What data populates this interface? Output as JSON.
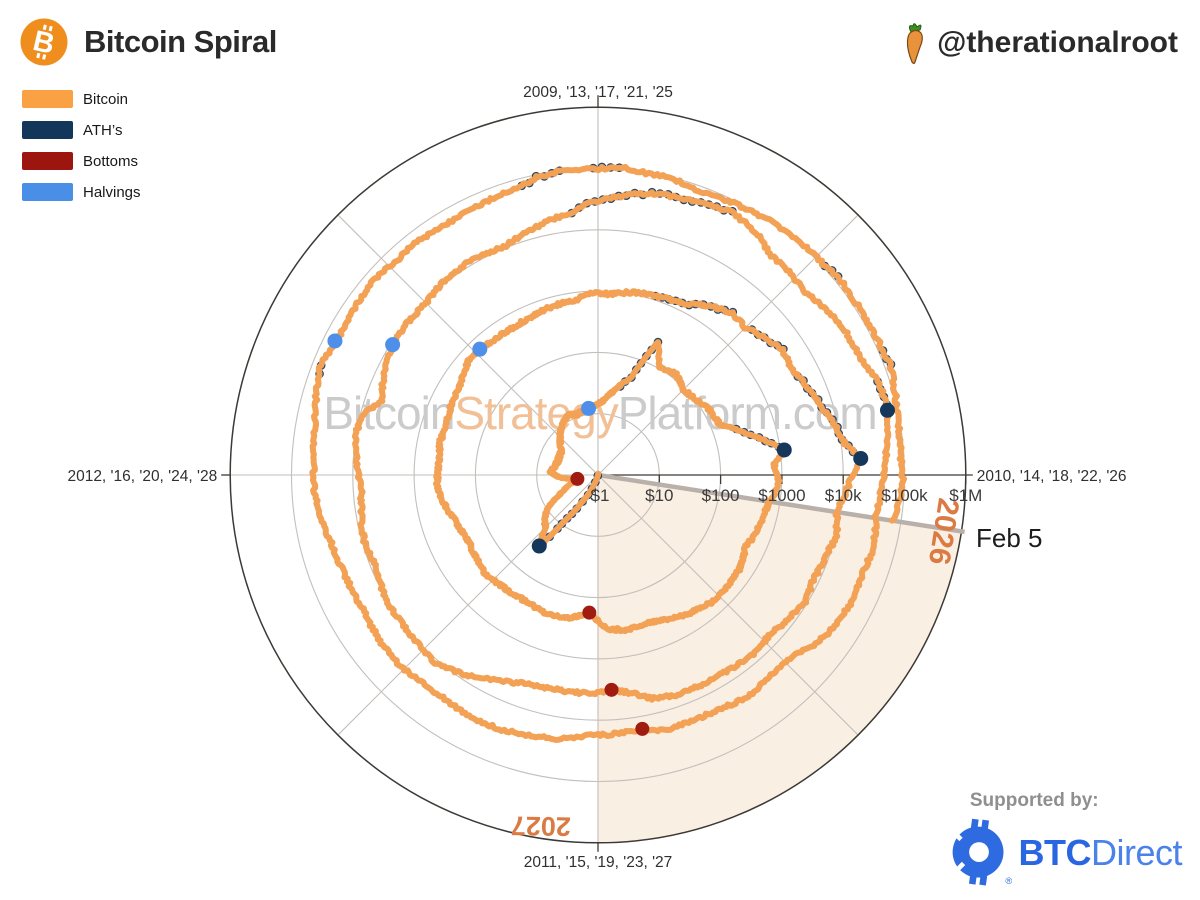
{
  "header": {
    "title": "Bitcoin Spiral",
    "handle": "@therationalroot"
  },
  "legend": [
    {
      "label": "Bitcoin",
      "color": "#F9A143"
    },
    {
      "label": "ATH’s",
      "color": "#12375B"
    },
    {
      "label": "Bottoms",
      "color": "#9C150E"
    },
    {
      "label": "Halvings",
      "color": "#4A8FE7"
    }
  ],
  "axis_labels": {
    "top": "2009, '13, '17, '21, '25",
    "right": "2010, '14, '18, '22, '26",
    "bottom": "2011, '15, '19, '23, '27",
    "left": "2012, '16, '20, '24, '28",
    "price_ticks": [
      "$1",
      "$10",
      "$100",
      "$1000",
      "$10k",
      "$100k",
      "$1M"
    ]
  },
  "annotations": {
    "current_date_label": "Feb 5",
    "wedge_start_year": "2026",
    "wedge_end_year": "2027",
    "watermark_parts": [
      "Bitcoin",
      "Strategy",
      "Platform.com"
    ]
  },
  "footer": {
    "supported_by": "Supported by:",
    "sponsor_bold": "BTC",
    "sponsor_light": "Direct"
  },
  "colors": {
    "bitcoin_line": "#F2A155",
    "ath_dot": "#15375C",
    "bottom_dot": "#A11C10",
    "halving_dot": "#4E8FE9",
    "wedge_fill": "#FAEFE3",
    "grid_light": "#C3BFBB",
    "axis_dark": "#3D3935",
    "gray_line": "#B8B0A9",
    "cycle_label_orange": "#DB7B43",
    "watermark_gray": "#CBCBCB",
    "watermark_orange": "#F2C096",
    "label_dark": "#2F2F2F",
    "header_logo_orange": "#EF8E1C"
  },
  "chart_data": {
    "type": "line",
    "subtype": "polar_log_spiral",
    "title": "Bitcoin Spiral",
    "angle_axis": {
      "years_per_revolution": 4,
      "year_at_top": "2009 + 4k",
      "direction": "clockwise"
    },
    "radial_axis": {
      "scale": "log10",
      "unit": "USD",
      "center_value": 1,
      "outer_value": 1000000
    },
    "price_series": [
      [
        2011.1,
        1.0
      ],
      [
        2011.18,
        0.95
      ],
      [
        2011.26,
        1.7
      ],
      [
        2011.34,
        3.2
      ],
      [
        2011.4,
        8.5
      ],
      [
        2011.44,
        31.9
      ],
      [
        2011.5,
        16
      ],
      [
        2011.56,
        13.5
      ],
      [
        2011.63,
        9.5
      ],
      [
        2011.7,
        5.0
      ],
      [
        2011.79,
        3.0
      ],
      [
        2011.88,
        2.2
      ],
      [
        2011.96,
        4.2
      ],
      [
        2012.04,
        6.0
      ],
      [
        2012.12,
        5.2
      ],
      [
        2012.21,
        4.9
      ],
      [
        2012.29,
        5.0
      ],
      [
        2012.37,
        5.2
      ],
      [
        2012.46,
        6.6
      ],
      [
        2012.54,
        8.5
      ],
      [
        2012.62,
        10.5
      ],
      [
        2012.71,
        12.3
      ],
      [
        2012.79,
        11.0
      ],
      [
        2012.88,
        12.5
      ],
      [
        2012.96,
        13.3
      ],
      [
        2013.04,
        16
      ],
      [
        2013.12,
        25
      ],
      [
        2013.21,
        48
      ],
      [
        2013.27,
        230
      ],
      [
        2013.33,
        105
      ],
      [
        2013.42,
        120
      ],
      [
        2013.5,
        93
      ],
      [
        2013.58,
        102
      ],
      [
        2013.67,
        130
      ],
      [
        2013.75,
        140
      ],
      [
        2013.83,
        340
      ],
      [
        2013.915,
        1163
      ],
      [
        2013.96,
        760
      ],
      [
        2014.02,
        900
      ],
      [
        2014.12,
        640
      ],
      [
        2014.21,
        570
      ],
      [
        2014.29,
        470
      ],
      [
        2014.37,
        590
      ],
      [
        2014.46,
        620
      ],
      [
        2014.54,
        600
      ],
      [
        2014.62,
        510
      ],
      [
        2014.71,
        420
      ],
      [
        2014.79,
        345
      ],
      [
        2014.88,
        370
      ],
      [
        2014.96,
        325
      ],
      [
        2015.04,
        178
      ],
      [
        2015.12,
        237
      ],
      [
        2015.21,
        262
      ],
      [
        2015.29,
        240
      ],
      [
        2015.37,
        235
      ],
      [
        2015.46,
        252
      ],
      [
        2015.54,
        280
      ],
      [
        2015.62,
        250
      ],
      [
        2015.71,
        233
      ],
      [
        2015.79,
        270
      ],
      [
        2015.88,
        350
      ],
      [
        2015.96,
        430
      ],
      [
        2016.04,
        395
      ],
      [
        2016.12,
        425
      ],
      [
        2016.21,
        415
      ],
      [
        2016.29,
        445
      ],
      [
        2016.37,
        500
      ],
      [
        2016.46,
        650
      ],
      [
        2016.52,
        655
      ],
      [
        2016.58,
        590
      ],
      [
        2016.67,
        600
      ],
      [
        2016.75,
        630
      ],
      [
        2016.83,
        710
      ],
      [
        2016.92,
        760
      ],
      [
        2016.98,
        950
      ],
      [
        2017.04,
        900
      ],
      [
        2017.12,
        1080
      ],
      [
        2017.21,
        1180
      ],
      [
        2017.29,
        1300
      ],
      [
        2017.37,
        2000
      ],
      [
        2017.44,
        2700
      ],
      [
        2017.5,
        2500
      ],
      [
        2017.56,
        3300
      ],
      [
        2017.62,
        4300
      ],
      [
        2017.69,
        4000
      ],
      [
        2017.75,
        5200
      ],
      [
        2017.83,
        7100
      ],
      [
        2017.88,
        9500
      ],
      [
        2017.92,
        11500
      ],
      [
        2017.96,
        19700
      ],
      [
        2018.0,
        14000
      ],
      [
        2018.04,
        11500
      ],
      [
        2018.1,
        8700
      ],
      [
        2018.16,
        10500
      ],
      [
        2018.21,
        8900
      ],
      [
        2018.29,
        8000
      ],
      [
        2018.35,
        9300
      ],
      [
        2018.42,
        7600
      ],
      [
        2018.48,
        6600
      ],
      [
        2018.54,
        7500
      ],
      [
        2018.62,
        6700
      ],
      [
        2018.71,
        6500
      ],
      [
        2018.79,
        6350
      ],
      [
        2018.85,
        5600
      ],
      [
        2018.9,
        4000
      ],
      [
        2018.96,
        3250
      ],
      [
        2019.02,
        3700
      ],
      [
        2019.12,
        3650
      ],
      [
        2019.21,
        3950
      ],
      [
        2019.29,
        5300
      ],
      [
        2019.37,
        8000
      ],
      [
        2019.46,
        11500
      ],
      [
        2019.52,
        10500
      ],
      [
        2019.58,
        10300
      ],
      [
        2019.67,
        10200
      ],
      [
        2019.75,
        8300
      ],
      [
        2019.83,
        9200
      ],
      [
        2019.88,
        8500
      ],
      [
        2019.96,
        7200
      ],
      [
        2020.04,
        8800
      ],
      [
        2020.1,
        10200
      ],
      [
        2020.16,
        9200
      ],
      [
        2020.21,
        5300
      ],
      [
        2020.27,
        6900
      ],
      [
        2020.33,
        8800
      ],
      [
        2020.42,
        9600
      ],
      [
        2020.5,
        9200
      ],
      [
        2020.58,
        11200
      ],
      [
        2020.67,
        11700
      ],
      [
        2020.75,
        10600
      ],
      [
        2020.81,
        13000
      ],
      [
        2020.88,
        16800
      ],
      [
        2020.93,
        19500
      ],
      [
        2020.98,
        27000
      ],
      [
        2021.03,
        33000
      ],
      [
        2021.07,
        40000
      ],
      [
        2021.12,
        47000
      ],
      [
        2021.18,
        52000
      ],
      [
        2021.23,
        57000
      ],
      [
        2021.3,
        64500
      ],
      [
        2021.33,
        59000
      ],
      [
        2021.38,
        49000
      ],
      [
        2021.42,
        37000
      ],
      [
        2021.48,
        35500
      ],
      [
        2021.54,
        32000
      ],
      [
        2021.6,
        40000
      ],
      [
        2021.67,
        46500
      ],
      [
        2021.73,
        48000
      ],
      [
        2021.8,
        67000
      ],
      [
        2021.86,
        69000
      ],
      [
        2021.92,
        57000
      ],
      [
        2021.98,
        47500
      ],
      [
        2022.04,
        42000
      ],
      [
        2022.1,
        38500
      ],
      [
        2022.16,
        44000
      ],
      [
        2022.23,
        40500
      ],
      [
        2022.29,
        42000
      ],
      [
        2022.35,
        39500
      ],
      [
        2022.42,
        31500
      ],
      [
        2022.48,
        21500
      ],
      [
        2022.54,
        20500
      ],
      [
        2022.62,
        23500
      ],
      [
        2022.69,
        20000
      ],
      [
        2022.77,
        19500
      ],
      [
        2022.83,
        20500
      ],
      [
        2022.89,
        16000
      ],
      [
        2022.96,
        16900
      ],
      [
        2023.04,
        18500
      ],
      [
        2023.1,
        23000
      ],
      [
        2023.16,
        24500
      ],
      [
        2023.23,
        27500
      ],
      [
        2023.29,
        29000
      ],
      [
        2023.37,
        27000
      ],
      [
        2023.44,
        26800
      ],
      [
        2023.52,
        30500
      ],
      [
        2023.58,
        29500
      ],
      [
        2023.67,
        26200
      ],
      [
        2023.75,
        27200
      ],
      [
        2023.83,
        30000
      ],
      [
        2023.9,
        36500
      ],
      [
        2023.96,
        43000
      ],
      [
        2024.04,
        44000
      ],
      [
        2024.1,
        48000
      ],
      [
        2024.16,
        57000
      ],
      [
        2024.21,
        68000
      ],
      [
        2024.24,
        73000
      ],
      [
        2024.29,
        65500
      ],
      [
        2024.33,
        61000
      ],
      [
        2024.4,
        67000
      ],
      [
        2024.46,
        69500
      ],
      [
        2024.52,
        62500
      ],
      [
        2024.58,
        66000
      ],
      [
        2024.65,
        59000
      ],
      [
        2024.71,
        63000
      ],
      [
        2024.77,
        67000
      ],
      [
        2024.83,
        72500
      ],
      [
        2024.87,
        90000
      ],
      [
        2024.92,
        98000
      ],
      [
        2024.96,
        95500
      ],
      [
        2025.02,
        102000
      ],
      [
        2025.05,
        108500
      ],
      [
        2025.1,
        97000
      ],
      [
        2025.16,
        96000
      ],
      [
        2025.21,
        84500
      ],
      [
        2025.27,
        87000
      ],
      [
        2025.33,
        94500
      ],
      [
        2025.4,
        103500
      ],
      [
        2025.46,
        106000
      ],
      [
        2025.52,
        108500
      ],
      [
        2025.56,
        119000
      ],
      [
        2025.62,
        114500
      ],
      [
        2025.69,
        113500
      ],
      [
        2025.75,
        121000
      ],
      [
        2025.77,
        125500
      ],
      [
        2025.83,
        106000
      ],
      [
        2025.88,
        94500
      ],
      [
        2025.92,
        90500
      ],
      [
        2025.96,
        88000
      ],
      [
        2026.02,
        94000
      ],
      [
        2026.06,
        83000
      ],
      [
        2026.098,
        75500
      ]
    ],
    "bottoms": [
      {
        "t": 2011.88,
        "price": 2.2
      },
      {
        "t": 2015.04,
        "price": 178
      },
      {
        "t": 2018.96,
        "price": 3250
      },
      {
        "t": 2022.89,
        "price": 16000
      }
    ],
    "halvings": [
      {
        "t": 2012.91,
        "price": 12.5
      },
      {
        "t": 2016.52,
        "price": 655
      },
      {
        "t": 2020.36,
        "price": 9300
      },
      {
        "t": 2024.3,
        "price": 65500
      }
    ],
    "cycle_peaks": [
      {
        "t": 2011.44,
        "price": 31.9
      },
      {
        "t": 2013.915,
        "price": 1163
      },
      {
        "t": 2017.96,
        "price": 19700
      },
      {
        "t": 2021.86,
        "price": 69000
      }
    ],
    "current_point": {
      "t": 2026.098,
      "price": 75500,
      "label": "Feb 5"
    }
  }
}
